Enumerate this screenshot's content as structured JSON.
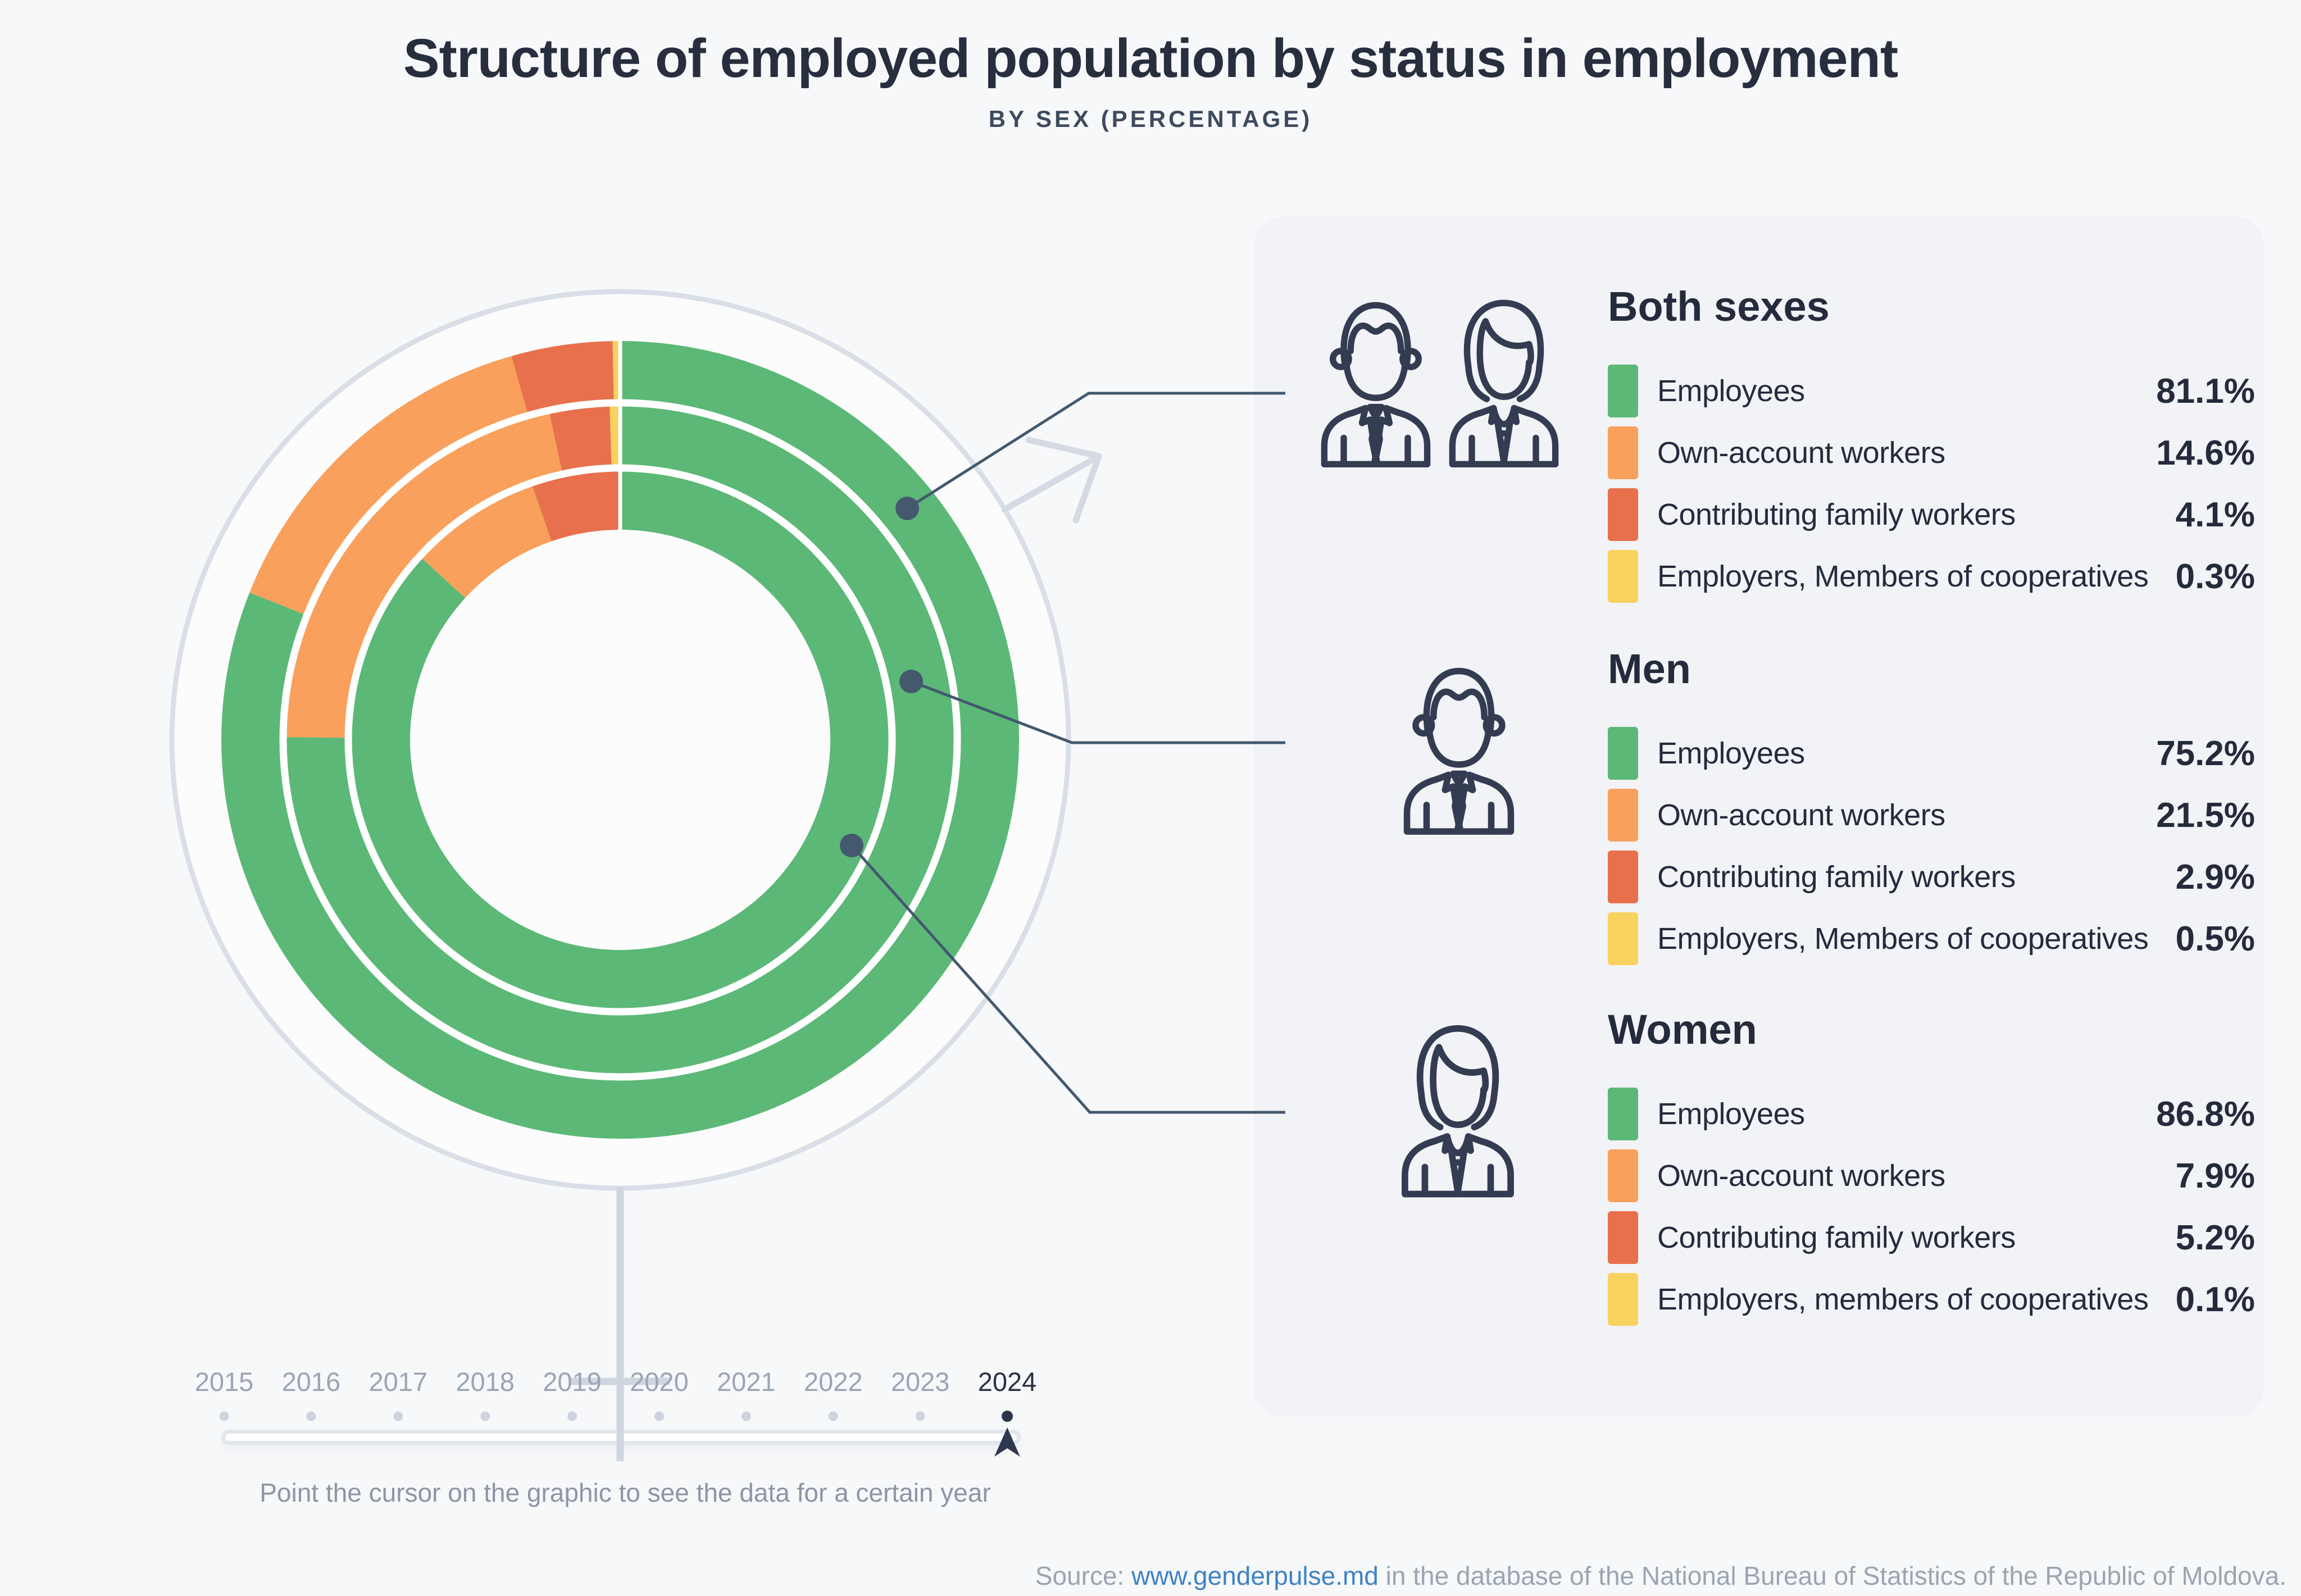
{
  "header": {
    "title": "Structure of employed population by status in employment",
    "subtitle": "BY SEX (PERCENTAGE)"
  },
  "legend": {
    "groups": [
      {
        "id": "both-sexes",
        "title": "Both sexes",
        "icon": "man-woman",
        "rows": [
          {
            "label": "Employees",
            "value": "81.1%",
            "color": "#5cb877"
          },
          {
            "label": "Own-account workers",
            "value": "14.6%",
            "color": "#f9a05c"
          },
          {
            "label": "Contributing family workers",
            "value": "4.1%",
            "color": "#e8704d"
          },
          {
            "label": "Employers, Members of cooperatives",
            "value": "0.3%",
            "color": "#f9d15f"
          }
        ]
      },
      {
        "id": "men",
        "title": "Men",
        "icon": "man",
        "rows": [
          {
            "label": "Employees",
            "value": "75.2%",
            "color": "#5cb877"
          },
          {
            "label": "Own-account workers",
            "value": "21.5%",
            "color": "#f9a05c"
          },
          {
            "label": "Contributing family workers",
            "value": "2.9%",
            "color": "#e8704d"
          },
          {
            "label": "Employers, Members of cooperatives",
            "value": "0.5%",
            "color": "#f9d15f"
          }
        ]
      },
      {
        "id": "women",
        "title": "Women",
        "icon": "woman",
        "rows": [
          {
            "label": "Employees",
            "value": "86.8%",
            "color": "#5cb877"
          },
          {
            "label": "Own-account workers",
            "value": "7.9%",
            "color": "#f9a05c"
          },
          {
            "label": "Contributing family workers",
            "value": "5.2%",
            "color": "#e8704d"
          },
          {
            "label": "Employers, members of cooperatives",
            "value": "0.1%",
            "color": "#f9d15f"
          }
        ]
      }
    ]
  },
  "chart_data": {
    "type": "donut-multi-ring",
    "title": "Structure of employed population by status in employment, by sex, 2024",
    "categories": [
      "Employees",
      "Own-account workers",
      "Contributing family workers",
      "Employers, Members of cooperatives"
    ],
    "colors": [
      "#5cb877",
      "#f9a05c",
      "#e8704d",
      "#f9d15f"
    ],
    "start_angle_deg": 0,
    "direction": "clockwise",
    "rings": [
      {
        "name": "Both sexes",
        "position": "outer",
        "values": [
          81.1,
          14.6,
          4.1,
          0.3
        ]
      },
      {
        "name": "Men",
        "position": "middle",
        "values": [
          75.2,
          21.5,
          2.9,
          0.5
        ]
      },
      {
        "name": "Women",
        "position": "inner",
        "values": [
          86.8,
          7.9,
          5.2,
          0.1
        ]
      }
    ]
  },
  "timeline": {
    "years": [
      "2015",
      "2016",
      "2017",
      "2018",
      "2019",
      "2020",
      "2021",
      "2022",
      "2023",
      "2024"
    ],
    "selected": "2024",
    "hint": "Point the cursor on the graphic to see the data for a certain year"
  },
  "source": {
    "prefix": "Source: ",
    "link": "www.genderpulse.md",
    "suffix": " in the database of the National Bureau of Statistics of the Republic of Moldova."
  },
  "colors": {
    "background": "#f7f8fa",
    "panel": "#f1f3f6",
    "icon_navy": "#343c52",
    "callout": "#44586e",
    "symbol_gray": "#d4dae3",
    "year_gray": "#9aa5b4",
    "year_active": "#2a3242",
    "link_blue": "#3f82c4"
  }
}
